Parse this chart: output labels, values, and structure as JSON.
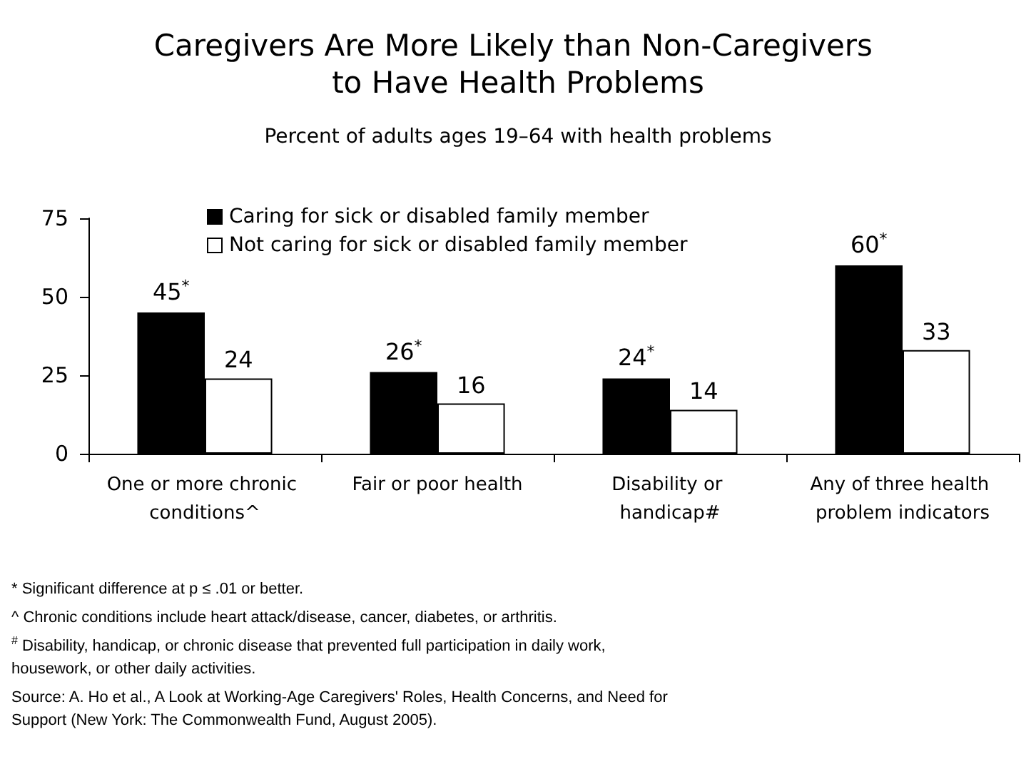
{
  "chart_data": {
    "type": "bar",
    "title": "Caregivers Are More Likely than Non-Caregivers to Have Health Problems",
    "subtitle": "Percent of adults ages 19–64 with health problems",
    "categories": [
      "One or more chronic conditions^",
      "Fair or poor health",
      "Disability or handicap#",
      "Any of three health problem indicators"
    ],
    "series": [
      {
        "name": "Caring for sick or disabled family member",
        "color": "#000000",
        "values": [
          45,
          26,
          24,
          60
        ],
        "value_labels": [
          "45$^{*}$",
          "26$^{*}$",
          "24$^{*}$",
          "60$^{*}$"
        ]
      },
      {
        "name": "Not caring for sick or disabled family member",
        "color": "#ffffff",
        "values": [
          24,
          16,
          14,
          33
        ],
        "value_labels": [
          "24",
          "16",
          "14",
          "33"
        ]
      }
    ],
    "ylim": [
      0,
      75
    ],
    "yticks": [
      0,
      25,
      50,
      75
    ],
    "grid": false,
    "legend": "top left",
    "annotations": [
      "* Significant difference at p ≤ .01 or better.",
      "^ Chronic conditions include heart attack/disease, cancer, diabetes, or arthritis.",
      "$^{#}$ Disability, handicap, or chronic disease that prevented full participation in daily work, housework, or other daily activities.",
      "Source: A. Ho et al., A Look at Working-Age Caregivers' Roles, Health Concerns, and Need for Support (New York: The Commonwealth Fund, August 2005)."
    ]
  }
}
